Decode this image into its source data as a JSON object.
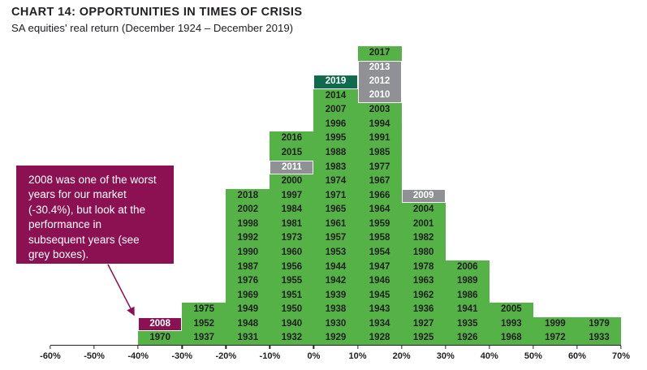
{
  "chart_data": {
    "type": "histogram-stacked-years",
    "title": "CHART 14: OPPORTUNITIES IN TIMES OF CRISIS",
    "subtitle": "SA equities' real return (December 1924 – December 2019)",
    "x_axis": {
      "tick_labels": [
        "-60%",
        "-50%",
        "-40%",
        "-30%",
        "-20%",
        "-10%",
        "0%",
        "10%",
        "20%",
        "30%",
        "40%",
        "50%",
        "60%",
        "70%"
      ],
      "min_pct": -60,
      "max_pct": 70,
      "bucket_width_pct": 10
    },
    "columns": [
      {
        "bucket_start": -40,
        "range": "-40% to -30%",
        "years": [
          "2008",
          "1970"
        ]
      },
      {
        "bucket_start": -30,
        "range": "-30% to -20%",
        "years": [
          "1975",
          "1952",
          "1937"
        ]
      },
      {
        "bucket_start": -20,
        "range": "-20% to -10%",
        "years": [
          "2018",
          "2002",
          "1998",
          "1992",
          "1990",
          "1987",
          "1976",
          "1969",
          "1949",
          "1948",
          "1931"
        ]
      },
      {
        "bucket_start": -10,
        "range": "-10% to 0%",
        "years": [
          "2016",
          "2015",
          "2011",
          "2000",
          "1997",
          "1984",
          "1981",
          "1973",
          "1960",
          "1956",
          "1955",
          "1951",
          "1950",
          "1940",
          "1932"
        ]
      },
      {
        "bucket_start": 0,
        "range": "0% to 10%",
        "years": [
          "2019",
          "2014",
          "2007",
          "1996",
          "1995",
          "1988",
          "1983",
          "1974",
          "1971",
          "1965",
          "1961",
          "1957",
          "1953",
          "1944",
          "1942",
          "1939",
          "1938",
          "1930",
          "1929"
        ]
      },
      {
        "bucket_start": 10,
        "range": "10% to 20%",
        "years": [
          "2017",
          "2013",
          "2012",
          "2010",
          "2003",
          "1994",
          "1991",
          "1985",
          "1977",
          "1967",
          "1966",
          "1964",
          "1959",
          "1958",
          "1954",
          "1947",
          "1946",
          "1945",
          "1943",
          "1934",
          "1928"
        ]
      },
      {
        "bucket_start": 20,
        "range": "20% to 30%",
        "years": [
          "2009",
          "2004",
          "2001",
          "1982",
          "1980",
          "1978",
          "1963",
          "1962",
          "1936",
          "1927",
          "1925"
        ]
      },
      {
        "bucket_start": 30,
        "range": "30% to 40%",
        "years": [
          "2006",
          "1989",
          "1986",
          "1941",
          "1935",
          "1926"
        ]
      },
      {
        "bucket_start": 40,
        "range": "40% to 50%",
        "years": [
          "2005",
          "1993",
          "1968"
        ]
      },
      {
        "bucket_start": 50,
        "range": "50% to 60%",
        "years": [
          "1999",
          "1972"
        ]
      },
      {
        "bucket_start": 60,
        "range": "60% to 70%",
        "years": [
          "1979",
          "1933"
        ]
      }
    ],
    "highlights": {
      "2008": "crisis",
      "2019": "latest",
      "2009": "post-crisis",
      "2010": "post-crisis",
      "2011": "post-crisis",
      "2012": "post-crisis",
      "2013": "post-crisis"
    },
    "colors": {
      "green": "#55B246",
      "crisis": "#8C1152",
      "latest": "#106A4D",
      "post-crisis": "#8F9194",
      "year_text": "#20201E",
      "highlight_text": "#FFFFFF",
      "axis_text": "#231F20"
    },
    "annotation": {
      "text": "2008 was one of the worst years for our market (-30.4%), but look at the performance in subsequent years (see grey boxes)."
    }
  }
}
